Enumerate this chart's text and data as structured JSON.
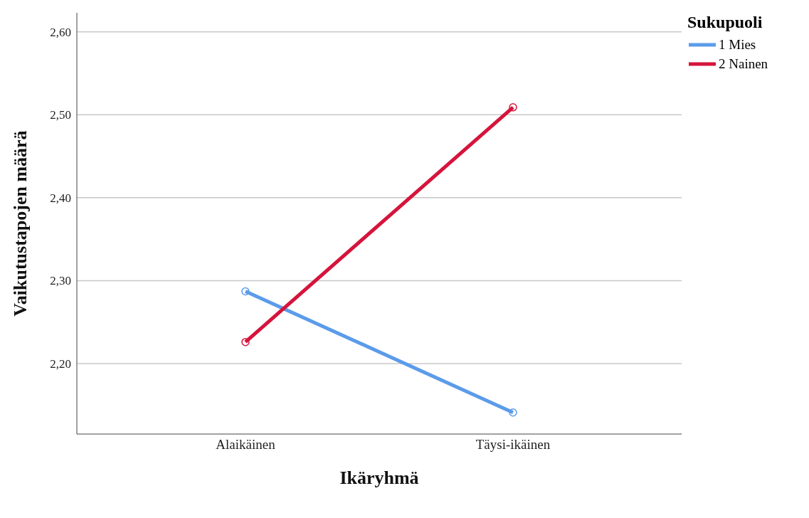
{
  "chart_data": {
    "type": "line",
    "xlabel": "Ikäryhmä",
    "ylabel": "Vaikutustapojen määrä",
    "legend_title": "Sukupuoli",
    "categories": [
      "Alaikäinen",
      "Täysi-ikäinen"
    ],
    "series": [
      {
        "name": "1 Mies",
        "color": "#5b9bea",
        "values": [
          2.287,
          2.141
        ]
      },
      {
        "name": "2 Nainen",
        "color": "#d5143c",
        "values": [
          2.226,
          2.509
        ]
      }
    ],
    "ylim": [
      2.115,
      2.623
    ],
    "yticks": [
      {
        "value": 2.2,
        "label": "2,20"
      },
      {
        "value": 2.3,
        "label": "2,30"
      },
      {
        "value": 2.4,
        "label": "2,40"
      },
      {
        "value": 2.5,
        "label": "2,50"
      },
      {
        "value": 2.6,
        "label": "2,60"
      }
    ],
    "grid": "y",
    "legend": "top right",
    "marker": "circle",
    "line_style": "solid"
  }
}
